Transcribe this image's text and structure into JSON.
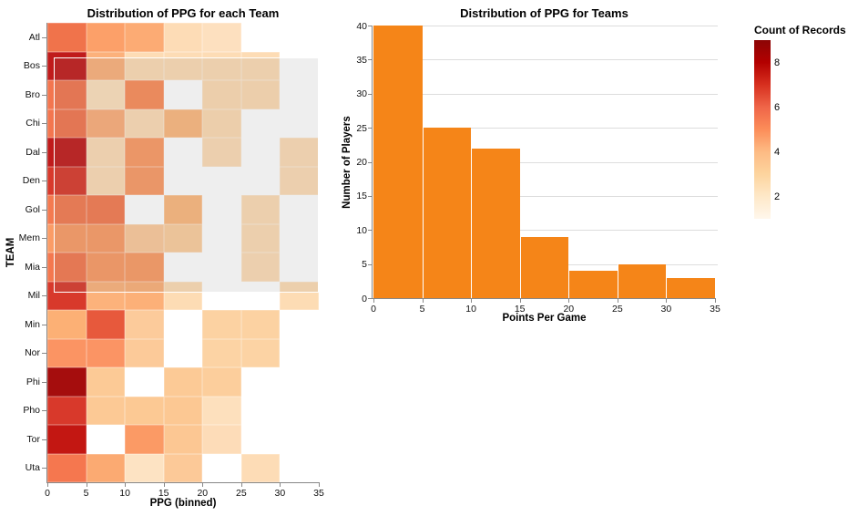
{
  "chart_data": [
    {
      "type": "heatmap",
      "title": "Distribution of PPG for each Team",
      "xlabel": "PPG (binned)",
      "ylabel": "TEAM",
      "x_ticks": [
        "0",
        "5",
        "10",
        "15",
        "20",
        "25",
        "30",
        "35"
      ],
      "teams": [
        "Atl",
        "Bos",
        "Bro",
        "Chi",
        "Dal",
        "Den",
        "Gol",
        "Mem",
        "Mia",
        "Mil",
        "Min",
        "Nor",
        "Phi",
        "Pho",
        "Tor",
        "Uta"
      ],
      "bins": [
        "0-5",
        "5-10",
        "10-15",
        "15-20",
        "20-25",
        "25-30",
        "30-35"
      ],
      "counts": [
        [
          5,
          4,
          4,
          2,
          2,
          null,
          null
        ],
        [
          8,
          4,
          2,
          2,
          2,
          2,
          null
        ],
        [
          6,
          2,
          5,
          null,
          2,
          2,
          null
        ],
        [
          6,
          4,
          2,
          4,
          2,
          null,
          null
        ],
        [
          8,
          2,
          5,
          null,
          2,
          null,
          2
        ],
        [
          7,
          2,
          5,
          null,
          null,
          null,
          2
        ],
        [
          6,
          6,
          null,
          4,
          null,
          2,
          null
        ],
        [
          5,
          5,
          3,
          3,
          null,
          2,
          null
        ],
        [
          6,
          5,
          5,
          null,
          null,
          2,
          null
        ],
        [
          7,
          4,
          4,
          2,
          null,
          null,
          2
        ],
        [
          4,
          6,
          3,
          null,
          3,
          3,
          null
        ],
        [
          5,
          5,
          3,
          null,
          3,
          3,
          null
        ],
        [
          9,
          3,
          null,
          3,
          3,
          null,
          null
        ],
        [
          7,
          3,
          3,
          3,
          2,
          null,
          null
        ],
        [
          8,
          null,
          5,
          3,
          2,
          null,
          null
        ],
        [
          6,
          4,
          1,
          3,
          null,
          2,
          null
        ]
      ],
      "cell_colors": [
        [
          "#f0734b",
          "#fca069",
          "#fcab74",
          "#fddcb6",
          "#fde0bf",
          null,
          null
        ],
        [
          "#c01b1b",
          "#fcb17b",
          "#fddcb5",
          "#fddcb5",
          "#fddcb5",
          "#fddcb5",
          null
        ],
        [
          "#f3764f",
          "#fde0bd",
          "#fb8d59",
          null,
          "#fddbb3",
          "#fddbb3",
          null
        ],
        [
          "#f3764f",
          "#fcae7a",
          "#fddcb6",
          "#fcb87f",
          "#fddbb3",
          null,
          null
        ],
        [
          "#c01b1b",
          "#fddcb6",
          "#fc9a65",
          null,
          "#fddcb6",
          null,
          "#fddcb6"
        ],
        [
          "#d8392b",
          "#fddcb6",
          "#fb9a66",
          null,
          null,
          null,
          "#fddcb6"
        ],
        [
          "#f47a50",
          "#f47a50",
          null,
          "#fcb87e",
          null,
          "#fddcb5",
          null
        ],
        [
          "#fb9c66",
          "#fb9c66",
          "#fcca9b",
          "#fcce9e",
          null,
          "#fddcb5",
          null
        ],
        [
          "#f4784f",
          "#fb9a64",
          "#fb9b65",
          null,
          null,
          "#fddcb6",
          null
        ],
        [
          "#d8392b",
          "#fcb27b",
          "#fcb078",
          "#fddcb4",
          null,
          null,
          "#fddcb4"
        ],
        [
          "#fcb075",
          "#e7593c",
          "#fccb9b",
          null,
          "#fcd2a2",
          "#fcd2a2",
          null
        ],
        [
          "#fb9463",
          "#fb9464",
          "#fcca99",
          null,
          "#fcd3a4",
          "#fcd3a4",
          null
        ],
        [
          "#a50d0d",
          "#fcca96",
          null,
          "#fcca96",
          "#fcce9c",
          null,
          null
        ],
        [
          "#d8392b",
          "#fcc995",
          "#fcc994",
          "#fcc893",
          "#fde0bd",
          null,
          null
        ],
        [
          "#c31712",
          null,
          "#fb9a65",
          "#fcc793",
          "#fddcb8",
          null,
          null
        ],
        [
          "#f5774f",
          "#fbaa72",
          "#fde3c3",
          "#fcc998",
          null,
          "#fddcb6",
          null
        ]
      ]
    },
    {
      "type": "bar",
      "title": "Distribution of PPG for Teams",
      "xlabel": "Points Per Game",
      "ylabel": "Number of Players",
      "bin_edges": [
        0,
        5,
        10,
        15,
        20,
        25,
        30,
        35
      ],
      "x_ticks": [
        "0",
        "5",
        "10",
        "15",
        "20",
        "25",
        "30",
        "35"
      ],
      "y_ticks": [
        0,
        5,
        10,
        15,
        20,
        25,
        30,
        35,
        40
      ],
      "values": [
        40,
        25,
        22,
        9,
        4,
        5,
        3
      ],
      "ylim": [
        0,
        40
      ],
      "bar_color": "#f58518",
      "grid": true,
      "legend_position": "right"
    }
  ],
  "legend": {
    "title": "Count of Records",
    "ticks": [
      8,
      6,
      4,
      2
    ],
    "domain": [
      1,
      9
    ],
    "gradient": [
      "#fff7ec",
      "#fee8c8",
      "#fdd49e",
      "#fdbb84",
      "#fc8d59",
      "#ef6548",
      "#d7301f",
      "#b30000",
      "#8c0505"
    ]
  },
  "brush": {
    "fill": "rgba(125,125,125,0.13)",
    "border_color": "#ffffff"
  }
}
